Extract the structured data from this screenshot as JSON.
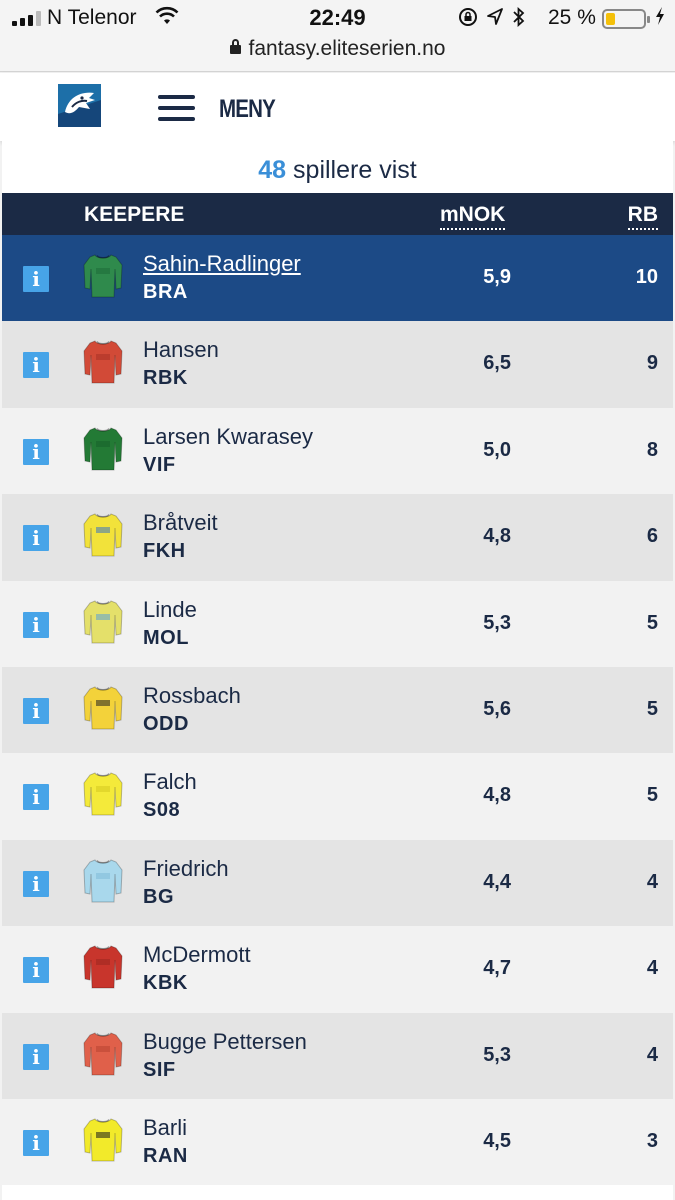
{
  "status_bar": {
    "carrier": "N Telenor",
    "time": "22:49",
    "battery_percent": "25 %",
    "battery_level": 0.25,
    "icons": [
      "orientation-lock-icon",
      "location-icon",
      "bluetooth-icon"
    ]
  },
  "browser": {
    "url": "fantasy.eliteserien.no"
  },
  "header": {
    "menu_label": "MENY"
  },
  "summary": {
    "count": "48",
    "count_text": "spillere vist"
  },
  "table": {
    "position_header": "KEEPERE",
    "price_header": "mNOK",
    "points_header": "RB",
    "rows": [
      {
        "name": "Sahin-Radlinger",
        "team": "BRA",
        "price": "5,9",
        "points": "10",
        "selected": true,
        "kit_color": "#2f8a4c",
        "kit_accent": "#1e6b38"
      },
      {
        "name": "Hansen",
        "team": "RBK",
        "price": "6,5",
        "points": "9",
        "selected": false,
        "kit_color": "#d24a37",
        "kit_accent": "#a83226"
      },
      {
        "name": "Larsen Kwarasey",
        "team": "VIF",
        "price": "5,0",
        "points": "8",
        "selected": false,
        "kit_color": "#237a35",
        "kit_accent": "#17602a"
      },
      {
        "name": "Bråtveit",
        "team": "FKH",
        "price": "4,8",
        "points": "6",
        "selected": false,
        "kit_color": "#f2e23a",
        "kit_accent": "#3a73c4"
      },
      {
        "name": "Linde",
        "team": "MOL",
        "price": "5,3",
        "points": "5",
        "selected": false,
        "kit_color": "#e4e06a",
        "kit_accent": "#5aa0d8"
      },
      {
        "name": "Rossbach",
        "team": "ODD",
        "price": "5,6",
        "points": "5",
        "selected": false,
        "kit_color": "#f3d23a",
        "kit_accent": "#222222"
      },
      {
        "name": "Falch",
        "team": "S08",
        "price": "4,8",
        "points": "5",
        "selected": false,
        "kit_color": "#f4ea3a",
        "kit_accent": "#d6c820"
      },
      {
        "name": "Friedrich",
        "team": "BG",
        "price": "4,4",
        "points": "4",
        "selected": false,
        "kit_color": "#a9d8ec",
        "kit_accent": "#7fbcd8"
      },
      {
        "name": "McDermott",
        "team": "KBK",
        "price": "4,7",
        "points": "4",
        "selected": false,
        "kit_color": "#c8352c",
        "kit_accent": "#9a2620"
      },
      {
        "name": "Bugge Pettersen",
        "team": "SIF",
        "price": "5,3",
        "points": "4",
        "selected": false,
        "kit_color": "#e0604a",
        "kit_accent": "#b84432"
      },
      {
        "name": "Barli",
        "team": "RAN",
        "price": "4,5",
        "points": "3",
        "selected": false,
        "kit_color": "#f2ea2a",
        "kit_accent": "#1a1a1a"
      }
    ]
  }
}
